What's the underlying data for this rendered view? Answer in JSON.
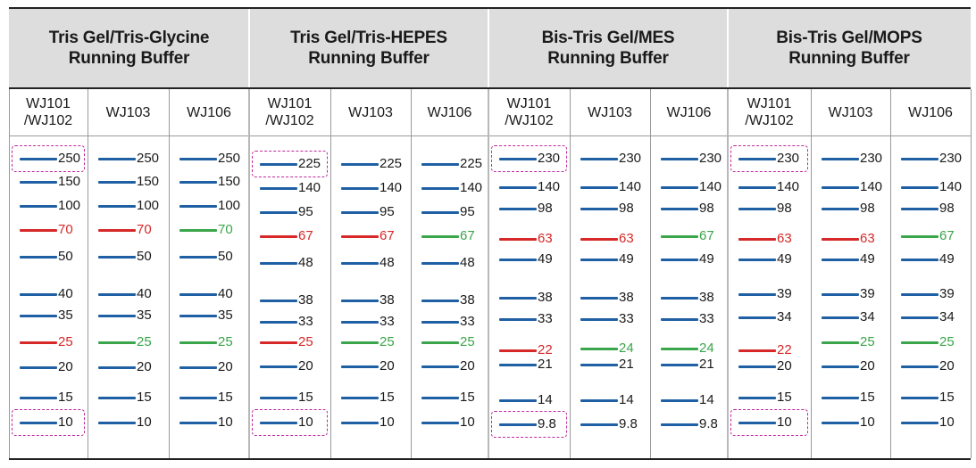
{
  "colors": {
    "blue": "#1f5fa3",
    "red": "#d62828",
    "green": "#3aa54a",
    "text": "#1a1a1a",
    "highlight": "#c0289c"
  },
  "groups": [
    {
      "title": "Tris Gel/Tris-Glycine\nRunning Buffer",
      "lanes": [
        {
          "name": "WJ101\n/WJ102",
          "highlight": [
            "250",
            "10"
          ],
          "bands": [
            {
              "label": "250",
              "color": "blue"
            },
            {
              "label": "150",
              "color": "blue"
            },
            {
              "label": "100",
              "color": "blue"
            },
            {
              "label": "70",
              "color": "red"
            },
            {
              "label": "50",
              "color": "blue"
            },
            {
              "label": "40",
              "color": "blue"
            },
            {
              "label": "35",
              "color": "blue"
            },
            {
              "label": "25",
              "color": "red"
            },
            {
              "label": "20",
              "color": "blue"
            },
            {
              "label": "15",
              "color": "blue"
            },
            {
              "label": "10",
              "color": "blue"
            }
          ]
        },
        {
          "name": "WJ103",
          "highlight": [],
          "bands": [
            {
              "label": "250",
              "color": "blue"
            },
            {
              "label": "150",
              "color": "blue"
            },
            {
              "label": "100",
              "color": "blue"
            },
            {
              "label": "70",
              "color": "red"
            },
            {
              "label": "50",
              "color": "blue"
            },
            {
              "label": "40",
              "color": "blue"
            },
            {
              "label": "35",
              "color": "blue"
            },
            {
              "label": "25",
              "color": "green"
            },
            {
              "label": "20",
              "color": "blue"
            },
            {
              "label": "15",
              "color": "blue"
            },
            {
              "label": "10",
              "color": "blue"
            }
          ]
        },
        {
          "name": "WJ106",
          "highlight": [],
          "bands": [
            {
              "label": "250",
              "color": "blue"
            },
            {
              "label": "150",
              "color": "blue"
            },
            {
              "label": "100",
              "color": "blue"
            },
            {
              "label": "70",
              "color": "green"
            },
            {
              "label": "50",
              "color": "blue"
            },
            {
              "label": "40",
              "color": "blue"
            },
            {
              "label": "35",
              "color": "blue"
            },
            {
              "label": "25",
              "color": "green"
            },
            {
              "label": "20",
              "color": "blue"
            },
            {
              "label": "15",
              "color": "blue"
            },
            {
              "label": "10",
              "color": "blue"
            }
          ]
        }
      ]
    },
    {
      "title": "Tris Gel/Tris-HEPES\nRunning Buffer",
      "lanes": [
        {
          "name": "WJ101\n/WJ102",
          "highlight": [
            "225",
            "10"
          ],
          "bands": [
            {
              "label": "225",
              "color": "blue"
            },
            {
              "label": "140",
              "color": "blue"
            },
            {
              "label": "95",
              "color": "blue"
            },
            {
              "label": "67",
              "color": "red"
            },
            {
              "label": "48",
              "color": "blue"
            },
            {
              "label": "38",
              "color": "blue"
            },
            {
              "label": "33",
              "color": "blue"
            },
            {
              "label": "25",
              "color": "red"
            },
            {
              "label": "20",
              "color": "blue"
            },
            {
              "label": "15",
              "color": "blue"
            },
            {
              "label": "10",
              "color": "blue"
            }
          ]
        },
        {
          "name": "WJ103",
          "highlight": [],
          "bands": [
            {
              "label": "225",
              "color": "blue"
            },
            {
              "label": "140",
              "color": "blue"
            },
            {
              "label": "95",
              "color": "blue"
            },
            {
              "label": "67",
              "color": "red"
            },
            {
              "label": "48",
              "color": "blue"
            },
            {
              "label": "38",
              "color": "blue"
            },
            {
              "label": "33",
              "color": "blue"
            },
            {
              "label": "25",
              "color": "green"
            },
            {
              "label": "20",
              "color": "blue"
            },
            {
              "label": "15",
              "color": "blue"
            },
            {
              "label": "10",
              "color": "blue"
            }
          ]
        },
        {
          "name": "WJ106",
          "highlight": [],
          "bands": [
            {
              "label": "225",
              "color": "blue"
            },
            {
              "label": "140",
              "color": "blue"
            },
            {
              "label": "95",
              "color": "blue"
            },
            {
              "label": "67",
              "color": "green"
            },
            {
              "label": "48",
              "color": "blue"
            },
            {
              "label": "38",
              "color": "blue"
            },
            {
              "label": "33",
              "color": "blue"
            },
            {
              "label": "25",
              "color": "green"
            },
            {
              "label": "20",
              "color": "blue"
            },
            {
              "label": "15",
              "color": "blue"
            },
            {
              "label": "10",
              "color": "blue"
            }
          ]
        }
      ]
    },
    {
      "title": "Bis-Tris Gel/MES\nRunning Buffer",
      "lanes": [
        {
          "name": "WJ101\n/WJ102",
          "highlight": [
            "230",
            "9.8"
          ],
          "bands": [
            {
              "label": "230",
              "color": "blue"
            },
            {
              "label": "140",
              "color": "blue"
            },
            {
              "label": "98",
              "color": "blue"
            },
            {
              "label": "63",
              "color": "red"
            },
            {
              "label": "49",
              "color": "blue"
            },
            {
              "label": "38",
              "color": "blue"
            },
            {
              "label": "33",
              "color": "blue"
            },
            {
              "label": "22",
              "color": "red"
            },
            {
              "label": "21",
              "color": "blue"
            },
            {
              "label": "14",
              "color": "blue"
            },
            {
              "label": "9.8",
              "color": "blue"
            }
          ]
        },
        {
          "name": "WJ103",
          "highlight": [],
          "bands": [
            {
              "label": "230",
              "color": "blue"
            },
            {
              "label": "140",
              "color": "blue"
            },
            {
              "label": "98",
              "color": "blue"
            },
            {
              "label": "63",
              "color": "red"
            },
            {
              "label": "49",
              "color": "blue"
            },
            {
              "label": "38",
              "color": "blue"
            },
            {
              "label": "33",
              "color": "blue"
            },
            {
              "label": "24",
              "color": "green"
            },
            {
              "label": "21",
              "color": "blue"
            },
            {
              "label": "14",
              "color": "blue"
            },
            {
              "label": "9.8",
              "color": "blue"
            }
          ]
        },
        {
          "name": "WJ106",
          "highlight": [],
          "bands": [
            {
              "label": "230",
              "color": "blue"
            },
            {
              "label": "140",
              "color": "blue"
            },
            {
              "label": "98",
              "color": "blue"
            },
            {
              "label": "67",
              "color": "green"
            },
            {
              "label": "49",
              "color": "blue"
            },
            {
              "label": "38",
              "color": "blue"
            },
            {
              "label": "33",
              "color": "blue"
            },
            {
              "label": "24",
              "color": "green"
            },
            {
              "label": "21",
              "color": "blue"
            },
            {
              "label": "14",
              "color": "blue"
            },
            {
              "label": "9.8",
              "color": "blue"
            }
          ]
        }
      ]
    },
    {
      "title": "Bis-Tris Gel/MOPS\nRunning Buffer",
      "lanes": [
        {
          "name": "WJ101\n/WJ102",
          "highlight": [
            "230",
            "10"
          ],
          "bands": [
            {
              "label": "230",
              "color": "blue"
            },
            {
              "label": "140",
              "color": "blue"
            },
            {
              "label": "98",
              "color": "blue"
            },
            {
              "label": "63",
              "color": "red"
            },
            {
              "label": "49",
              "color": "blue"
            },
            {
              "label": "39",
              "color": "blue"
            },
            {
              "label": "34",
              "color": "blue"
            },
            {
              "label": "22",
              "color": "red"
            },
            {
              "label": "20",
              "color": "blue"
            },
            {
              "label": "15",
              "color": "blue"
            },
            {
              "label": "10",
              "color": "blue"
            }
          ]
        },
        {
          "name": "WJ103",
          "highlight": [],
          "bands": [
            {
              "label": "230",
              "color": "blue"
            },
            {
              "label": "140",
              "color": "blue"
            },
            {
              "label": "98",
              "color": "blue"
            },
            {
              "label": "63",
              "color": "red"
            },
            {
              "label": "49",
              "color": "blue"
            },
            {
              "label": "39",
              "color": "blue"
            },
            {
              "label": "34",
              "color": "blue"
            },
            {
              "label": "25",
              "color": "green"
            },
            {
              "label": "20",
              "color": "blue"
            },
            {
              "label": "15",
              "color": "blue"
            },
            {
              "label": "10",
              "color": "blue"
            }
          ]
        },
        {
          "name": "WJ106",
          "highlight": [],
          "bands": [
            {
              "label": "230",
              "color": "blue"
            },
            {
              "label": "140",
              "color": "blue"
            },
            {
              "label": "98",
              "color": "blue"
            },
            {
              "label": "67",
              "color": "green"
            },
            {
              "label": "49",
              "color": "blue"
            },
            {
              "label": "39",
              "color": "blue"
            },
            {
              "label": "34",
              "color": "blue"
            },
            {
              "label": "25",
              "color": "green"
            },
            {
              "label": "20",
              "color": "blue"
            },
            {
              "label": "15",
              "color": "blue"
            },
            {
              "label": "10",
              "color": "blue"
            }
          ]
        }
      ]
    }
  ]
}
